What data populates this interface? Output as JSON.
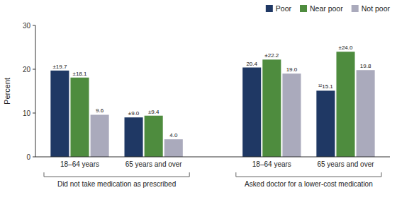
{
  "chart_data": {
    "type": "bar",
    "y_label": "Percent",
    "categories": [
      "18–64 years",
      "65 years and over",
      "18–64 years",
      "65 years and over"
    ],
    "annotations": [
      "Did not take medication as prescribed",
      "Asked doctor for a lower-cost medication"
    ],
    "series": [
      {
        "name": "Poor",
        "color": "#1f3864",
        "values": [
          19.7,
          9.0,
          20.4,
          15.1
        ],
        "value_labels": [
          "±19.7",
          "±9.0",
          "20.4",
          "¹²15.1"
        ]
      },
      {
        "name": "Near poor",
        "color": "#4e8c3e",
        "values": [
          18.1,
          9.4,
          22.2,
          24.0
        ],
        "value_labels": [
          "±18.1",
          "±9.4",
          "±22.2",
          "±24.0"
        ]
      },
      {
        "name": "Not poor",
        "color": "#aaaabc",
        "values": [
          9.6,
          4.0,
          19.0,
          19.8
        ],
        "value_labels": [
          "9.6",
          "4.0",
          "19.0",
          "19.8"
        ]
      }
    ],
    "ylim": [
      0,
      30
    ],
    "yticks": [
      0,
      10,
      20,
      30
    ],
    "grid": false,
    "legend": "upper right",
    "data_labels": true
  }
}
